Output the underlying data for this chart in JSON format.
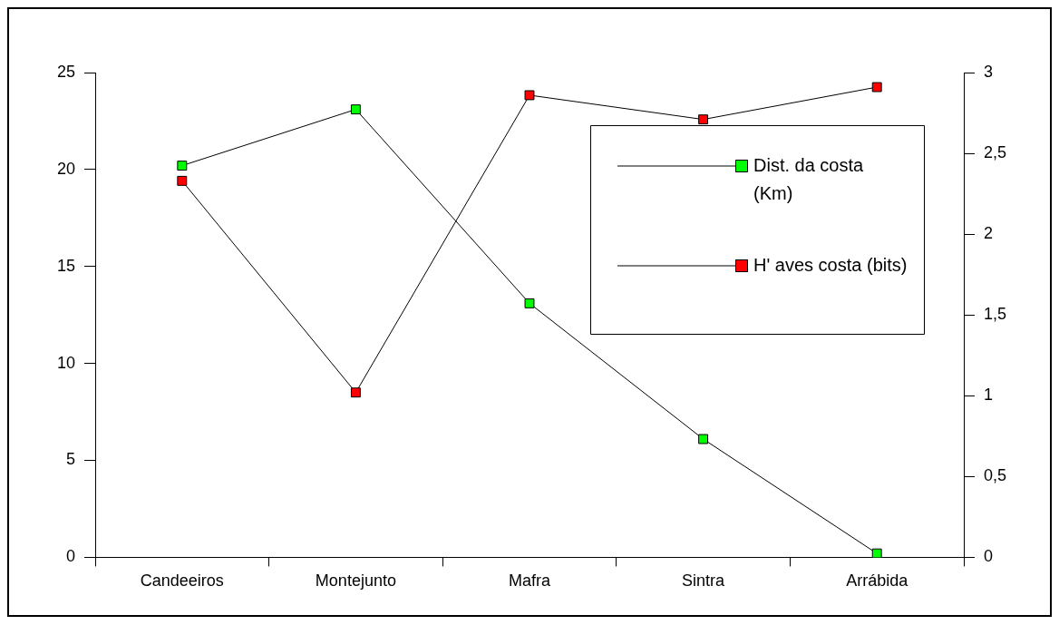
{
  "chart_data": {
    "type": "line",
    "categories": [
      "Candeeiros",
      "Montejunto",
      "Mafra",
      "Sintra",
      "Arrábida"
    ],
    "series": [
      {
        "name": "Dist. da costa (Km)",
        "color": "#00ff00",
        "values": [
          20.2,
          23.1,
          13.1,
          6.1,
          0.2
        ]
      },
      {
        "name": "H' aves costa (bits)",
        "color": "#ff0000",
        "axis": "y2",
        "values": [
          2.33,
          1.02,
          2.86,
          2.71,
          2.91
        ]
      }
    ],
    "ylim": [
      0,
      25
    ],
    "yticks": [
      0,
      5,
      10,
      15,
      20,
      25
    ],
    "y2lim": [
      0,
      3
    ],
    "y2ticks": [
      0,
      {
        "value": 0.5,
        "label": "0,5"
      },
      1,
      {
        "value": 1.5,
        "label": "1,5"
      },
      2,
      {
        "value": 2.5,
        "label": "2,5"
      },
      3
    ],
    "grid": false,
    "legend": "top right",
    "marker": "square",
    "line_style": "solid"
  }
}
